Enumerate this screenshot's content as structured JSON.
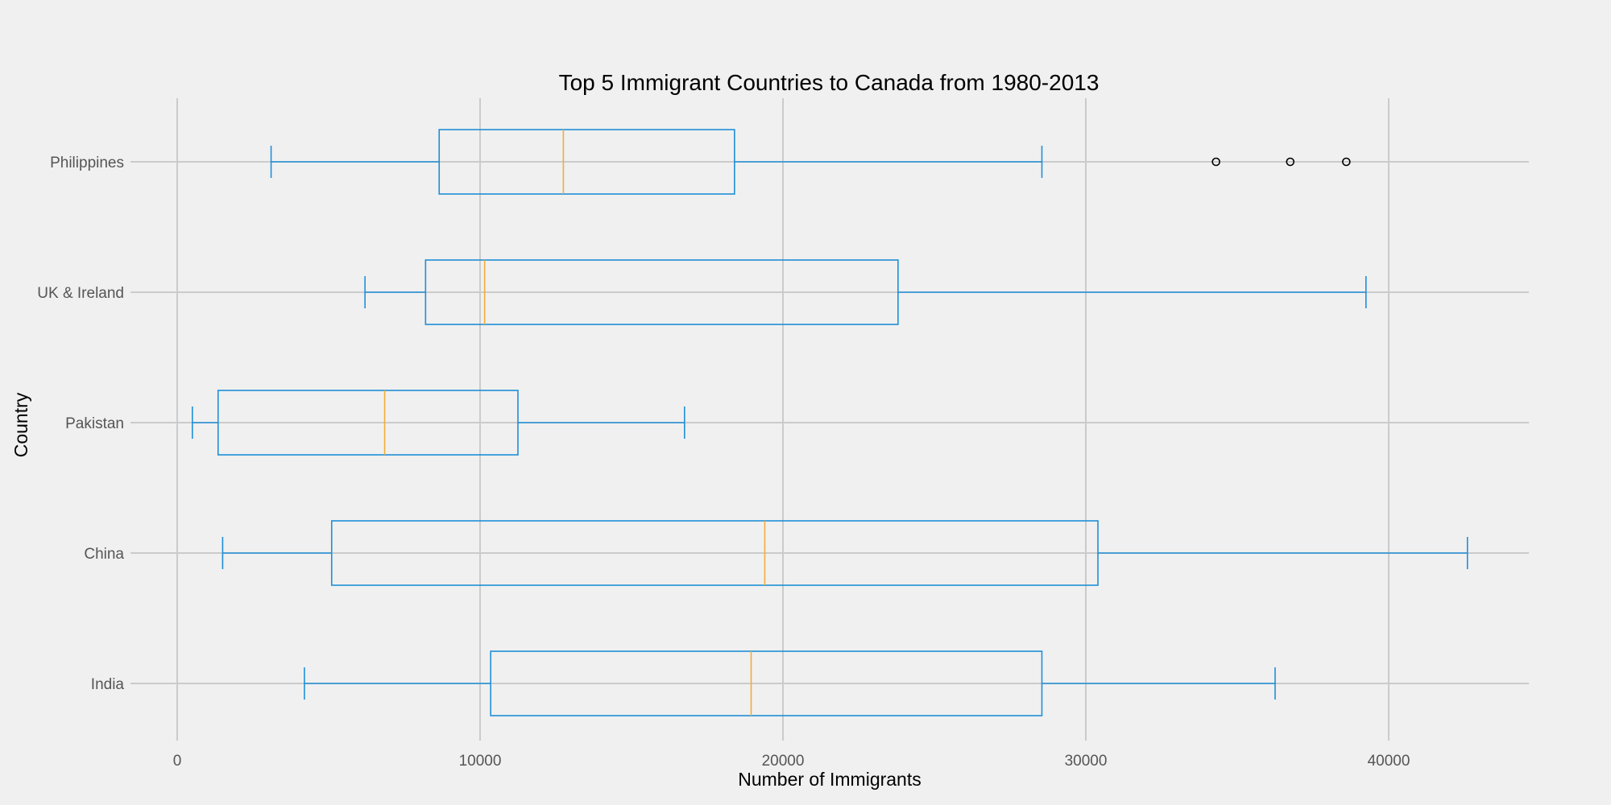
{
  "chart_data": {
    "type": "boxplot",
    "orientation": "horizontal",
    "title": "Top 5 Immigrant Countries to Canada from 1980-2013",
    "xlabel": "Number of Immigrants",
    "ylabel": "Country",
    "xlim": [
      -1500,
      44800
    ],
    "xticks": [
      0,
      10000,
      20000,
      30000,
      40000
    ],
    "grid": true,
    "colors": {
      "box": "#1f8fd8",
      "median": "#f0ad3c",
      "background": "#f0f0f0",
      "grid": "#cbcbcb"
    },
    "categories": [
      "India",
      "China",
      "Pakistan",
      "UK & Ireland",
      "Philippines"
    ],
    "series": [
      {
        "category": "India",
        "whislo": 4200,
        "q1": 10350,
        "median": 18950,
        "q3": 28550,
        "whishi": 36250,
        "fliers": []
      },
      {
        "category": "China",
        "whislo": 1500,
        "q1": 5100,
        "median": 19400,
        "q3": 30400,
        "whishi": 42600,
        "fliers": []
      },
      {
        "category": "Pakistan",
        "whislo": 500,
        "q1": 1350,
        "median": 6850,
        "q3": 11250,
        "whishi": 16750,
        "fliers": []
      },
      {
        "category": "UK & Ireland",
        "whislo": 6200,
        "q1": 8200,
        "median": 10150,
        "q3": 23800,
        "whishi": 39250,
        "fliers": []
      },
      {
        "category": "Philippines",
        "whislo": 3100,
        "q1": 8650,
        "median": 12750,
        "q3": 18400,
        "whishi": 28550,
        "fliers": [
          34300,
          36750,
          38600
        ]
      }
    ]
  }
}
